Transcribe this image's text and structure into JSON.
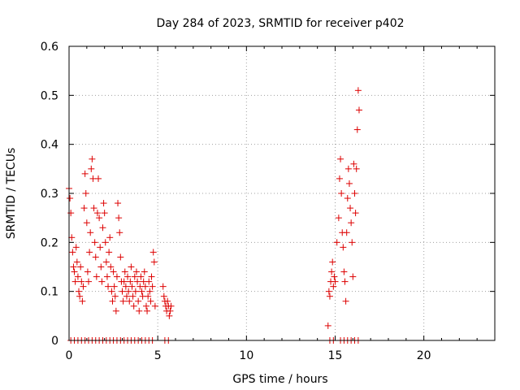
{
  "chart_data": {
    "type": "scatter",
    "title": "Day 284 of 2023, SRMTID for receiver p402",
    "xlabel": "GPS time / hours",
    "ylabel": "SRMTID / TECUs",
    "xlim": [
      0,
      24
    ],
    "ylim": [
      0,
      0.6
    ],
    "x_ticks": [
      0,
      5,
      10,
      15,
      20
    ],
    "x_tick_labels": [
      "0",
      "5",
      "10",
      "15",
      "20"
    ],
    "y_ticks": [
      0,
      0.1,
      0.2,
      0.3,
      0.4,
      0.5,
      0.6
    ],
    "y_tick_labels": [
      "0",
      "0.1",
      "0.2",
      "0.3",
      "0.4",
      "0.5",
      "0.6"
    ],
    "grid": true,
    "marker": "plus",
    "colors": {
      "points": "#dd0000",
      "grid": "#a0a0a0",
      "axes": "#000000"
    },
    "series": [
      {
        "name": "SRMTID",
        "x": [
          0.0,
          0.05,
          0.1,
          0.15,
          0.2,
          0.25,
          0.3,
          0.35,
          0.4,
          0.45,
          0.5,
          0.55,
          0.6,
          0.65,
          0.7,
          0.75,
          0.8,
          0.85,
          0.9,
          0.95,
          1.0,
          1.05,
          1.1,
          1.15,
          1.2,
          1.25,
          1.3,
          1.35,
          1.4,
          1.45,
          1.5,
          1.55,
          1.6,
          1.65,
          1.7,
          1.75,
          1.8,
          1.85,
          1.9,
          1.95,
          2.0,
          2.05,
          2.1,
          2.15,
          2.2,
          2.25,
          2.3,
          2.35,
          2.4,
          2.45,
          2.5,
          2.55,
          2.6,
          2.65,
          2.7,
          2.75,
          2.8,
          2.85,
          2.9,
          2.95,
          3.0,
          3.05,
          3.1,
          3.15,
          3.2,
          3.25,
          3.3,
          3.35,
          3.4,
          3.45,
          3.5,
          3.55,
          3.6,
          3.65,
          3.7,
          3.75,
          3.8,
          3.85,
          3.9,
          3.95,
          4.0,
          4.05,
          4.1,
          4.15,
          4.2,
          4.25,
          4.3,
          4.35,
          4.4,
          4.45,
          4.5,
          4.55,
          4.6,
          4.65,
          4.7,
          4.75,
          4.8,
          4.85,
          5.3,
          5.35,
          5.4,
          5.45,
          5.5,
          5.55,
          5.6,
          5.65,
          5.7,
          5.75,
          14.6,
          14.65,
          14.7,
          14.75,
          14.8,
          14.85,
          14.9,
          14.95,
          15.0,
          15.1,
          15.2,
          15.25,
          15.3,
          15.35,
          15.4,
          15.45,
          15.5,
          15.55,
          15.6,
          15.65,
          15.7,
          15.75,
          15.8,
          15.85,
          15.9,
          15.95,
          16.0,
          16.05,
          16.1,
          16.15,
          16.2,
          16.25,
          16.3,
          16.35,
          0.1,
          0.3,
          0.5,
          0.7,
          0.9,
          1.1,
          1.3,
          1.5,
          1.7,
          1.9,
          2.1,
          2.3,
          2.5,
          2.7,
          2.9,
          3.1,
          3.3,
          3.5,
          3.7,
          3.9,
          4.1,
          4.3,
          4.5,
          4.7,
          5.4,
          5.6,
          14.7,
          14.9,
          15.3,
          15.5,
          15.7,
          15.9,
          16.1,
          16.3
        ],
        "y": [
          0.31,
          0.29,
          0.26,
          0.21,
          0.18,
          0.15,
          0.14,
          0.12,
          0.19,
          0.16,
          0.13,
          0.1,
          0.09,
          0.15,
          0.12,
          0.08,
          0.11,
          0.27,
          0.34,
          0.3,
          0.24,
          0.14,
          0.12,
          0.18,
          0.22,
          0.35,
          0.37,
          0.33,
          0.27,
          0.2,
          0.17,
          0.13,
          0.26,
          0.33,
          0.25,
          0.19,
          0.15,
          0.12,
          0.23,
          0.28,
          0.26,
          0.2,
          0.16,
          0.13,
          0.11,
          0.18,
          0.21,
          0.15,
          0.1,
          0.08,
          0.14,
          0.11,
          0.09,
          0.06,
          0.13,
          0.28,
          0.25,
          0.22,
          0.17,
          0.12,
          0.1,
          0.08,
          0.12,
          0.14,
          0.11,
          0.09,
          0.13,
          0.1,
          0.08,
          0.12,
          0.15,
          0.11,
          0.09,
          0.07,
          0.13,
          0.1,
          0.14,
          0.12,
          0.08,
          0.06,
          0.11,
          0.13,
          0.1,
          0.09,
          0.12,
          0.14,
          0.11,
          0.07,
          0.06,
          0.09,
          0.12,
          0.1,
          0.08,
          0.13,
          0.11,
          0.18,
          0.16,
          0.07,
          0.11,
          0.09,
          0.08,
          0.07,
          0.06,
          0.08,
          0.07,
          0.05,
          0.06,
          0.07,
          0.03,
          0.1,
          0.09,
          0.12,
          0.14,
          0.16,
          0.11,
          0.13,
          0.12,
          0.2,
          0.25,
          0.33,
          0.37,
          0.3,
          0.22,
          0.19,
          0.14,
          0.12,
          0.08,
          0.22,
          0.29,
          0.35,
          0.32,
          0.27,
          0.24,
          0.2,
          0.13,
          0.36,
          0.3,
          0.26,
          0.35,
          0.43,
          0.51,
          0.47,
          0.0,
          0.0,
          0.0,
          0.0,
          0.0,
          0.0,
          0.0,
          0.0,
          0.0,
          0.0,
          0.0,
          0.0,
          0.0,
          0.0,
          0.0,
          0.0,
          0.0,
          0.0,
          0.0,
          0.0,
          0.0,
          0.0,
          0.0,
          0.0,
          0.0,
          0.0,
          0.0,
          0.0,
          0.0,
          0.0,
          0.0,
          0.0,
          0.0,
          0.0
        ]
      }
    ]
  }
}
